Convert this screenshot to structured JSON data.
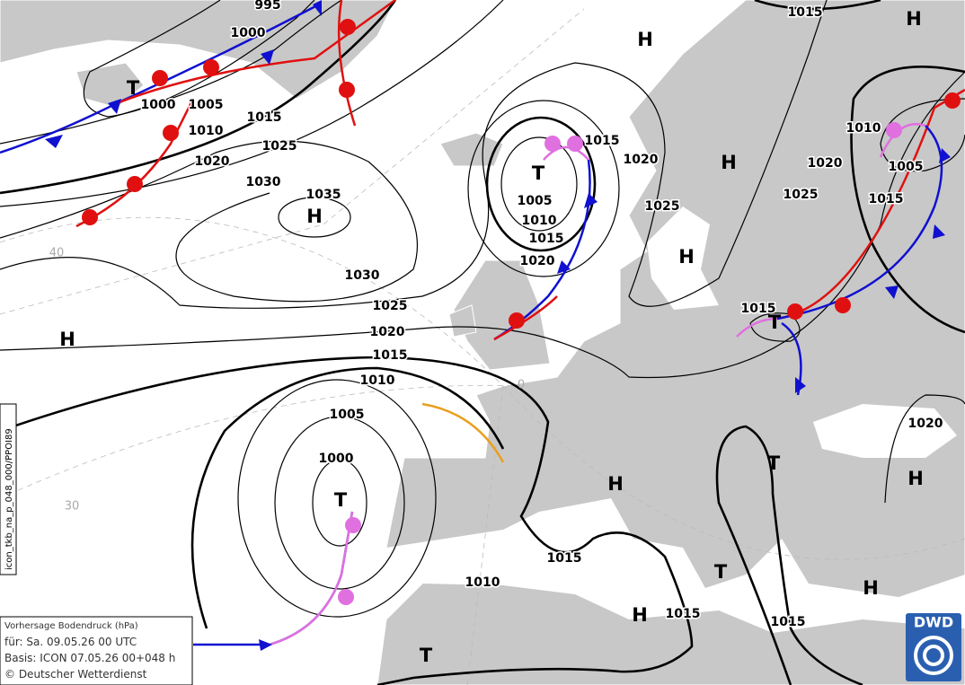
{
  "isobar_labels": [
    995,
    1000,
    1000,
    1005,
    1010,
    1015,
    1020,
    1025,
    1030,
    1035,
    1030,
    1025,
    1020,
    1015,
    1010,
    1005,
    1000,
    1015,
    1020,
    1025,
    1005,
    1010,
    1015,
    1020,
    1015,
    1010,
    1005,
    1020,
    1025,
    1015,
    1015,
    1020,
    1015,
    1010,
    1015,
    1015
  ],
  "pressure_centers": [
    "H",
    "H",
    "T",
    "T",
    "H",
    "H",
    "H",
    "H",
    "T",
    "T",
    "H",
    "H",
    "T",
    "T",
    "H",
    "H",
    "T"
  ],
  "grid_labels": [
    40,
    30,
    0
  ],
  "info_box": {
    "lines": [
      "Vorhersage Bodendruck (hPa)",
      "für:  Sa. 09.05.26  00 UTC",
      "Basis: ICON  07.05.26 00+048 h",
      "© Deutscher Wetterdienst"
    ]
  },
  "side_label": "icon_tkb_na_p_048_000/PPOI89",
  "logo": "DWD"
}
